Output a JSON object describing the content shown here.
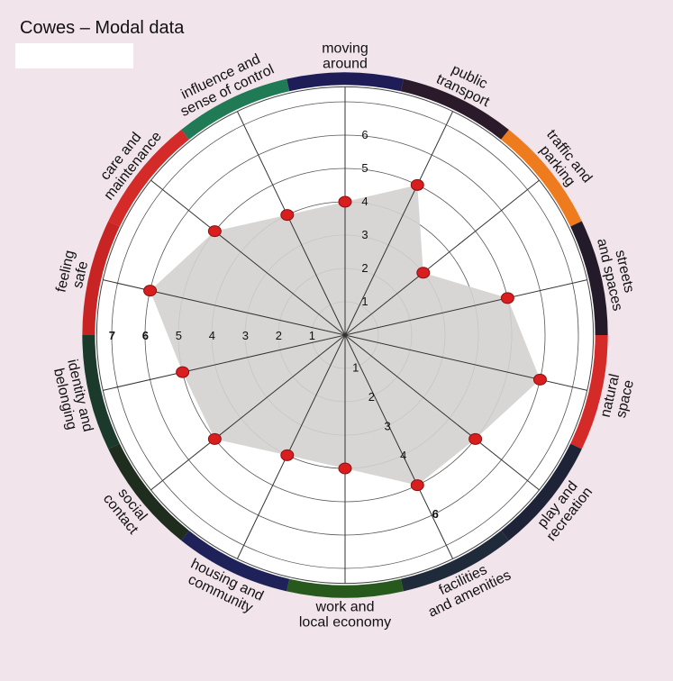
{
  "header": {
    "title": "Cowes – Modal data"
  },
  "chart_data": {
    "type": "radar",
    "title": "Cowes – Modal data",
    "rmax": 7,
    "ticks": [
      1,
      2,
      3,
      4,
      5,
      6,
      7
    ],
    "categories": [
      {
        "label": "moving around",
        "lines": [
          "moving",
          "around"
        ],
        "value": 4,
        "color": "#1e1d57"
      },
      {
        "label": "public transport",
        "lines": [
          "public",
          "transport"
        ],
        "value": 5,
        "color": "#2b1a2a"
      },
      {
        "label": "traffic and parking",
        "lines": [
          "traffic and",
          "parking"
        ],
        "value": 3,
        "color": "#ee7b1e"
      },
      {
        "label": "streets and spaces",
        "lines": [
          "streets",
          "and spaces"
        ],
        "value": 5,
        "color": "#231a2a"
      },
      {
        "label": "natural space",
        "lines": [
          "natural",
          "space"
        ],
        "value": 6,
        "color": "#d42a28"
      },
      {
        "label": "play and recreation",
        "lines": [
          "play and",
          "recreation"
        ],
        "value": 5,
        "color": "#1e2338"
      },
      {
        "label": "facilities and amenities",
        "lines": [
          "facilities",
          "and amenities"
        ],
        "value": 5,
        "color": "#1f2b3a"
      },
      {
        "label": "work and local economy",
        "lines": [
          "work and",
          "local economy"
        ],
        "value": 4,
        "color": "#28591c"
      },
      {
        "label": "housing and community",
        "lines": [
          "housing and",
          "community"
        ],
        "value": 4,
        "color": "#1e2258"
      },
      {
        "label": "social contact",
        "lines": [
          "social",
          "contact"
        ],
        "value": 5,
        "color": "#1f2d1e"
      },
      {
        "label": "identity and belonging",
        "lines": [
          "identity and",
          "belonging"
        ],
        "value": 5,
        "color": "#1b3a2b"
      },
      {
        "label": "feeling safe",
        "lines": [
          "feeling",
          "safe"
        ],
        "value": 6,
        "color": "#c92424"
      },
      {
        "label": "care and maintenance",
        "lines": [
          "care and",
          "maintenance"
        ],
        "value": 5,
        "color": "#d42a28"
      },
      {
        "label": "influence and sense of control",
        "lines": [
          "influence and",
          "sense of control"
        ],
        "value": 4,
        "color": "#1f7a55"
      }
    ],
    "fill_color": "#d4d1cf",
    "point_color": "#d81e1e",
    "grid": true
  }
}
